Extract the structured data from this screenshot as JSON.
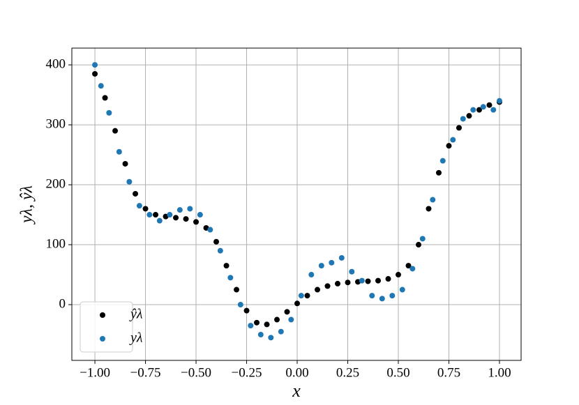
{
  "chart_data": {
    "type": "scatter",
    "xlabel": "x",
    "ylabel": "yλ, ŷλ",
    "series": [
      {
        "name": "ŷλ",
        "color": "#000000",
        "x": [
          -1,
          -0.95,
          -0.9,
          -0.85,
          -0.8,
          -0.75,
          -0.7,
          -0.65,
          -0.6,
          -0.55,
          -0.5,
          -0.45,
          -0.4,
          -0.35,
          -0.3,
          -0.25,
          -0.2,
          -0.15,
          -0.1,
          -0.05,
          0,
          0.05,
          0.1,
          0.15,
          0.2,
          0.25,
          0.3,
          0.35,
          0.4,
          0.45,
          0.5,
          0.55,
          0.6,
          0.65,
          0.7,
          0.75,
          0.8,
          0.85,
          0.9,
          0.95,
          1
        ],
        "values": [
          385,
          345,
          290,
          235,
          185,
          160,
          150,
          147,
          145,
          143,
          138,
          128,
          105,
          65,
          25,
          -10,
          -30,
          -33,
          -25,
          -12,
          2,
          15,
          25,
          31,
          35,
          37,
          38,
          39,
          40,
          43,
          50,
          65,
          100,
          160,
          220,
          265,
          295,
          315,
          325,
          333,
          338
        ]
      },
      {
        "name": "yλ",
        "color": "#1f77b4",
        "x": [
          -1,
          -0.97,
          -0.93,
          -0.88,
          -0.83,
          -0.78,
          -0.73,
          -0.68,
          -0.63,
          -0.58,
          -0.53,
          -0.48,
          -0.43,
          -0.38,
          -0.33,
          -0.28,
          -0.23,
          -0.18,
          -0.13,
          -0.08,
          -0.03,
          0.02,
          0.07,
          0.12,
          0.17,
          0.22,
          0.27,
          0.32,
          0.37,
          0.42,
          0.47,
          0.52,
          0.57,
          0.62,
          0.67,
          0.72,
          0.77,
          0.82,
          0.87,
          0.92,
          0.97,
          1
        ],
        "values": [
          400,
          365,
          320,
          255,
          205,
          165,
          150,
          140,
          150,
          158,
          160,
          150,
          125,
          90,
          45,
          0,
          -35,
          -50,
          -55,
          -45,
          -25,
          15,
          50,
          65,
          70,
          78,
          55,
          40,
          15,
          10,
          15,
          25,
          60,
          110,
          175,
          240,
          275,
          310,
          325,
          330,
          325,
          340
        ]
      }
    ],
    "xlim": [
      -1.114,
      1.107
    ],
    "xticks": [
      {
        "value": -1,
        "label": "−1.00"
      },
      {
        "value": -0.75,
        "label": "−0.75"
      },
      {
        "value": -0.5,
        "label": "−0.50"
      },
      {
        "value": -0.25,
        "label": "−0.25"
      },
      {
        "value": 0,
        "label": "0.00"
      },
      {
        "value": 0.25,
        "label": "0.25"
      },
      {
        "value": 0.5,
        "label": "0.50"
      },
      {
        "value": 0.75,
        "label": "0.75"
      },
      {
        "value": 1,
        "label": "1.00"
      }
    ],
    "ylim": [
      -93,
      428
    ],
    "yticks": [
      0,
      100,
      200,
      300,
      400
    ],
    "grid": true,
    "legend": "lower left"
  }
}
